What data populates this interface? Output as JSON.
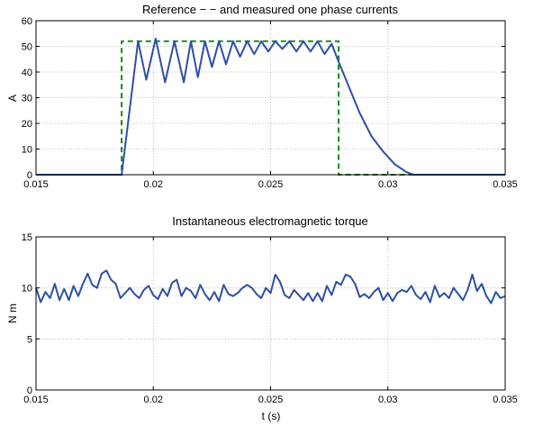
{
  "chart_data": [
    {
      "type": "line",
      "title": "Reference − − and measured one phase currents",
      "xlabel": "",
      "ylabel": "A",
      "xlim": [
        0.015,
        0.035
      ],
      "ylim": [
        0,
        60
      ],
      "xticks": [
        "0.015",
        "0.02",
        "0.025",
        "0.03",
        "0.035"
      ],
      "yticks": [
        "0",
        "10",
        "20",
        "30",
        "40",
        "50",
        "60"
      ],
      "grid": true,
      "series": [
        {
          "style": "dashed",
          "color": "#1a8a1a",
          "x": [
            0.015,
            0.01865,
            0.01865,
            0.0279,
            0.0279,
            0.035
          ],
          "y": [
            0,
            0,
            52,
            52,
            0,
            0
          ]
        },
        {
          "style": "solid",
          "color": "#2e4fa3",
          "x": [
            0.015,
            0.01865,
            0.01935,
            0.0197,
            0.0201,
            0.0205,
            0.0209,
            0.0213,
            0.0216,
            0.0219,
            0.0222,
            0.0225,
            0.0228,
            0.0231,
            0.0234,
            0.0237,
            0.024,
            0.0243,
            0.0246,
            0.0249,
            0.0252,
            0.0255,
            0.0258,
            0.0261,
            0.0264,
            0.0267,
            0.027,
            0.0273,
            0.0276,
            0.0279,
            0.02835,
            0.0288,
            0.0293,
            0.0298,
            0.0303,
            0.0308,
            0.0311,
            0.035
          ],
          "y": [
            0,
            0,
            52,
            37,
            53,
            36,
            52,
            36,
            52,
            38,
            52,
            42,
            52,
            43,
            52,
            46,
            52,
            47,
            52,
            48,
            52,
            49,
            52,
            48,
            52,
            48,
            52,
            47,
            51,
            44,
            34,
            24,
            15,
            9,
            4,
            1,
            0,
            0
          ]
        }
      ]
    },
    {
      "type": "line",
      "title": "Instantaneous electromagnetic torque",
      "xlabel": "t (s)",
      "ylabel": "N m",
      "xlim": [
        0.015,
        0.035
      ],
      "ylim": [
        0,
        15
      ],
      "xticks": [
        "0.015",
        "0.02",
        "0.025",
        "0.03",
        "0.035"
      ],
      "yticks": [
        "0",
        "5",
        "10",
        "15"
      ],
      "grid": true,
      "series": [
        {
          "style": "solid",
          "color": "#2e4fa3",
          "x": [
            0.015,
            0.0152,
            0.0154,
            0.0156,
            0.0158,
            0.016,
            0.0162,
            0.0164,
            0.0166,
            0.0168,
            0.017,
            0.0172,
            0.0174,
            0.0176,
            0.0178,
            0.018,
            0.0182,
            0.0184,
            0.0186,
            0.0188,
            0.019,
            0.0192,
            0.0194,
            0.0196,
            0.0198,
            0.02,
            0.0202,
            0.0204,
            0.0206,
            0.0208,
            0.021,
            0.0212,
            0.0214,
            0.0216,
            0.0218,
            0.022,
            0.0222,
            0.0224,
            0.0226,
            0.0228,
            0.023,
            0.0232,
            0.0234,
            0.0236,
            0.0238,
            0.024,
            0.0242,
            0.0244,
            0.0246,
            0.0248,
            0.025,
            0.0252,
            0.0254,
            0.0256,
            0.0258,
            0.026,
            0.0262,
            0.0264,
            0.0266,
            0.0268,
            0.027,
            0.0272,
            0.0274,
            0.0276,
            0.0278,
            0.028,
            0.0282,
            0.0284,
            0.0286,
            0.0288,
            0.029,
            0.0292,
            0.0294,
            0.0296,
            0.0298,
            0.03,
            0.0302,
            0.0304,
            0.0306,
            0.0308,
            0.031,
            0.0312,
            0.0314,
            0.0316,
            0.0318,
            0.032,
            0.0322,
            0.0324,
            0.0326,
            0.0328,
            0.033,
            0.0332,
            0.0334,
            0.0336,
            0.0338,
            0.034,
            0.0342,
            0.0344,
            0.0346,
            0.0348,
            0.035
          ],
          "y": [
            10.0,
            8.6,
            9.6,
            9.0,
            10.4,
            8.8,
            9.9,
            8.8,
            10.2,
            9.2,
            10.4,
            11.4,
            10.3,
            10.0,
            11.4,
            11.7,
            10.8,
            10.4,
            9.0,
            9.5,
            10.0,
            9.4,
            9.0,
            9.8,
            10.2,
            9.3,
            8.9,
            9.9,
            9.2,
            10.5,
            10.8,
            9.2,
            10.0,
            9.7,
            9.0,
            10.3,
            9.4,
            8.8,
            9.6,
            8.7,
            10.3,
            9.4,
            9.2,
            9.5,
            10.0,
            10.3,
            10.0,
            9.4,
            9.0,
            10.0,
            9.5,
            11.3,
            10.6,
            9.3,
            9.0,
            9.8,
            9.3,
            8.8,
            9.5,
            8.7,
            9.5,
            8.7,
            10.2,
            9.3,
            10.6,
            10.3,
            11.3,
            11.1,
            10.4,
            9.1,
            9.4,
            9.0,
            9.6,
            10.0,
            8.8,
            9.5,
            8.7,
            9.5,
            9.8,
            9.6,
            10.2,
            9.3,
            8.9,
            9.6,
            8.6,
            10.2,
            9.1,
            9.5,
            9.0,
            10.0,
            9.4,
            8.8,
            9.8,
            11.3,
            9.7,
            10.4,
            9.2,
            8.5,
            9.6,
            9.0,
            9.2
          ]
        }
      ]
    }
  ]
}
